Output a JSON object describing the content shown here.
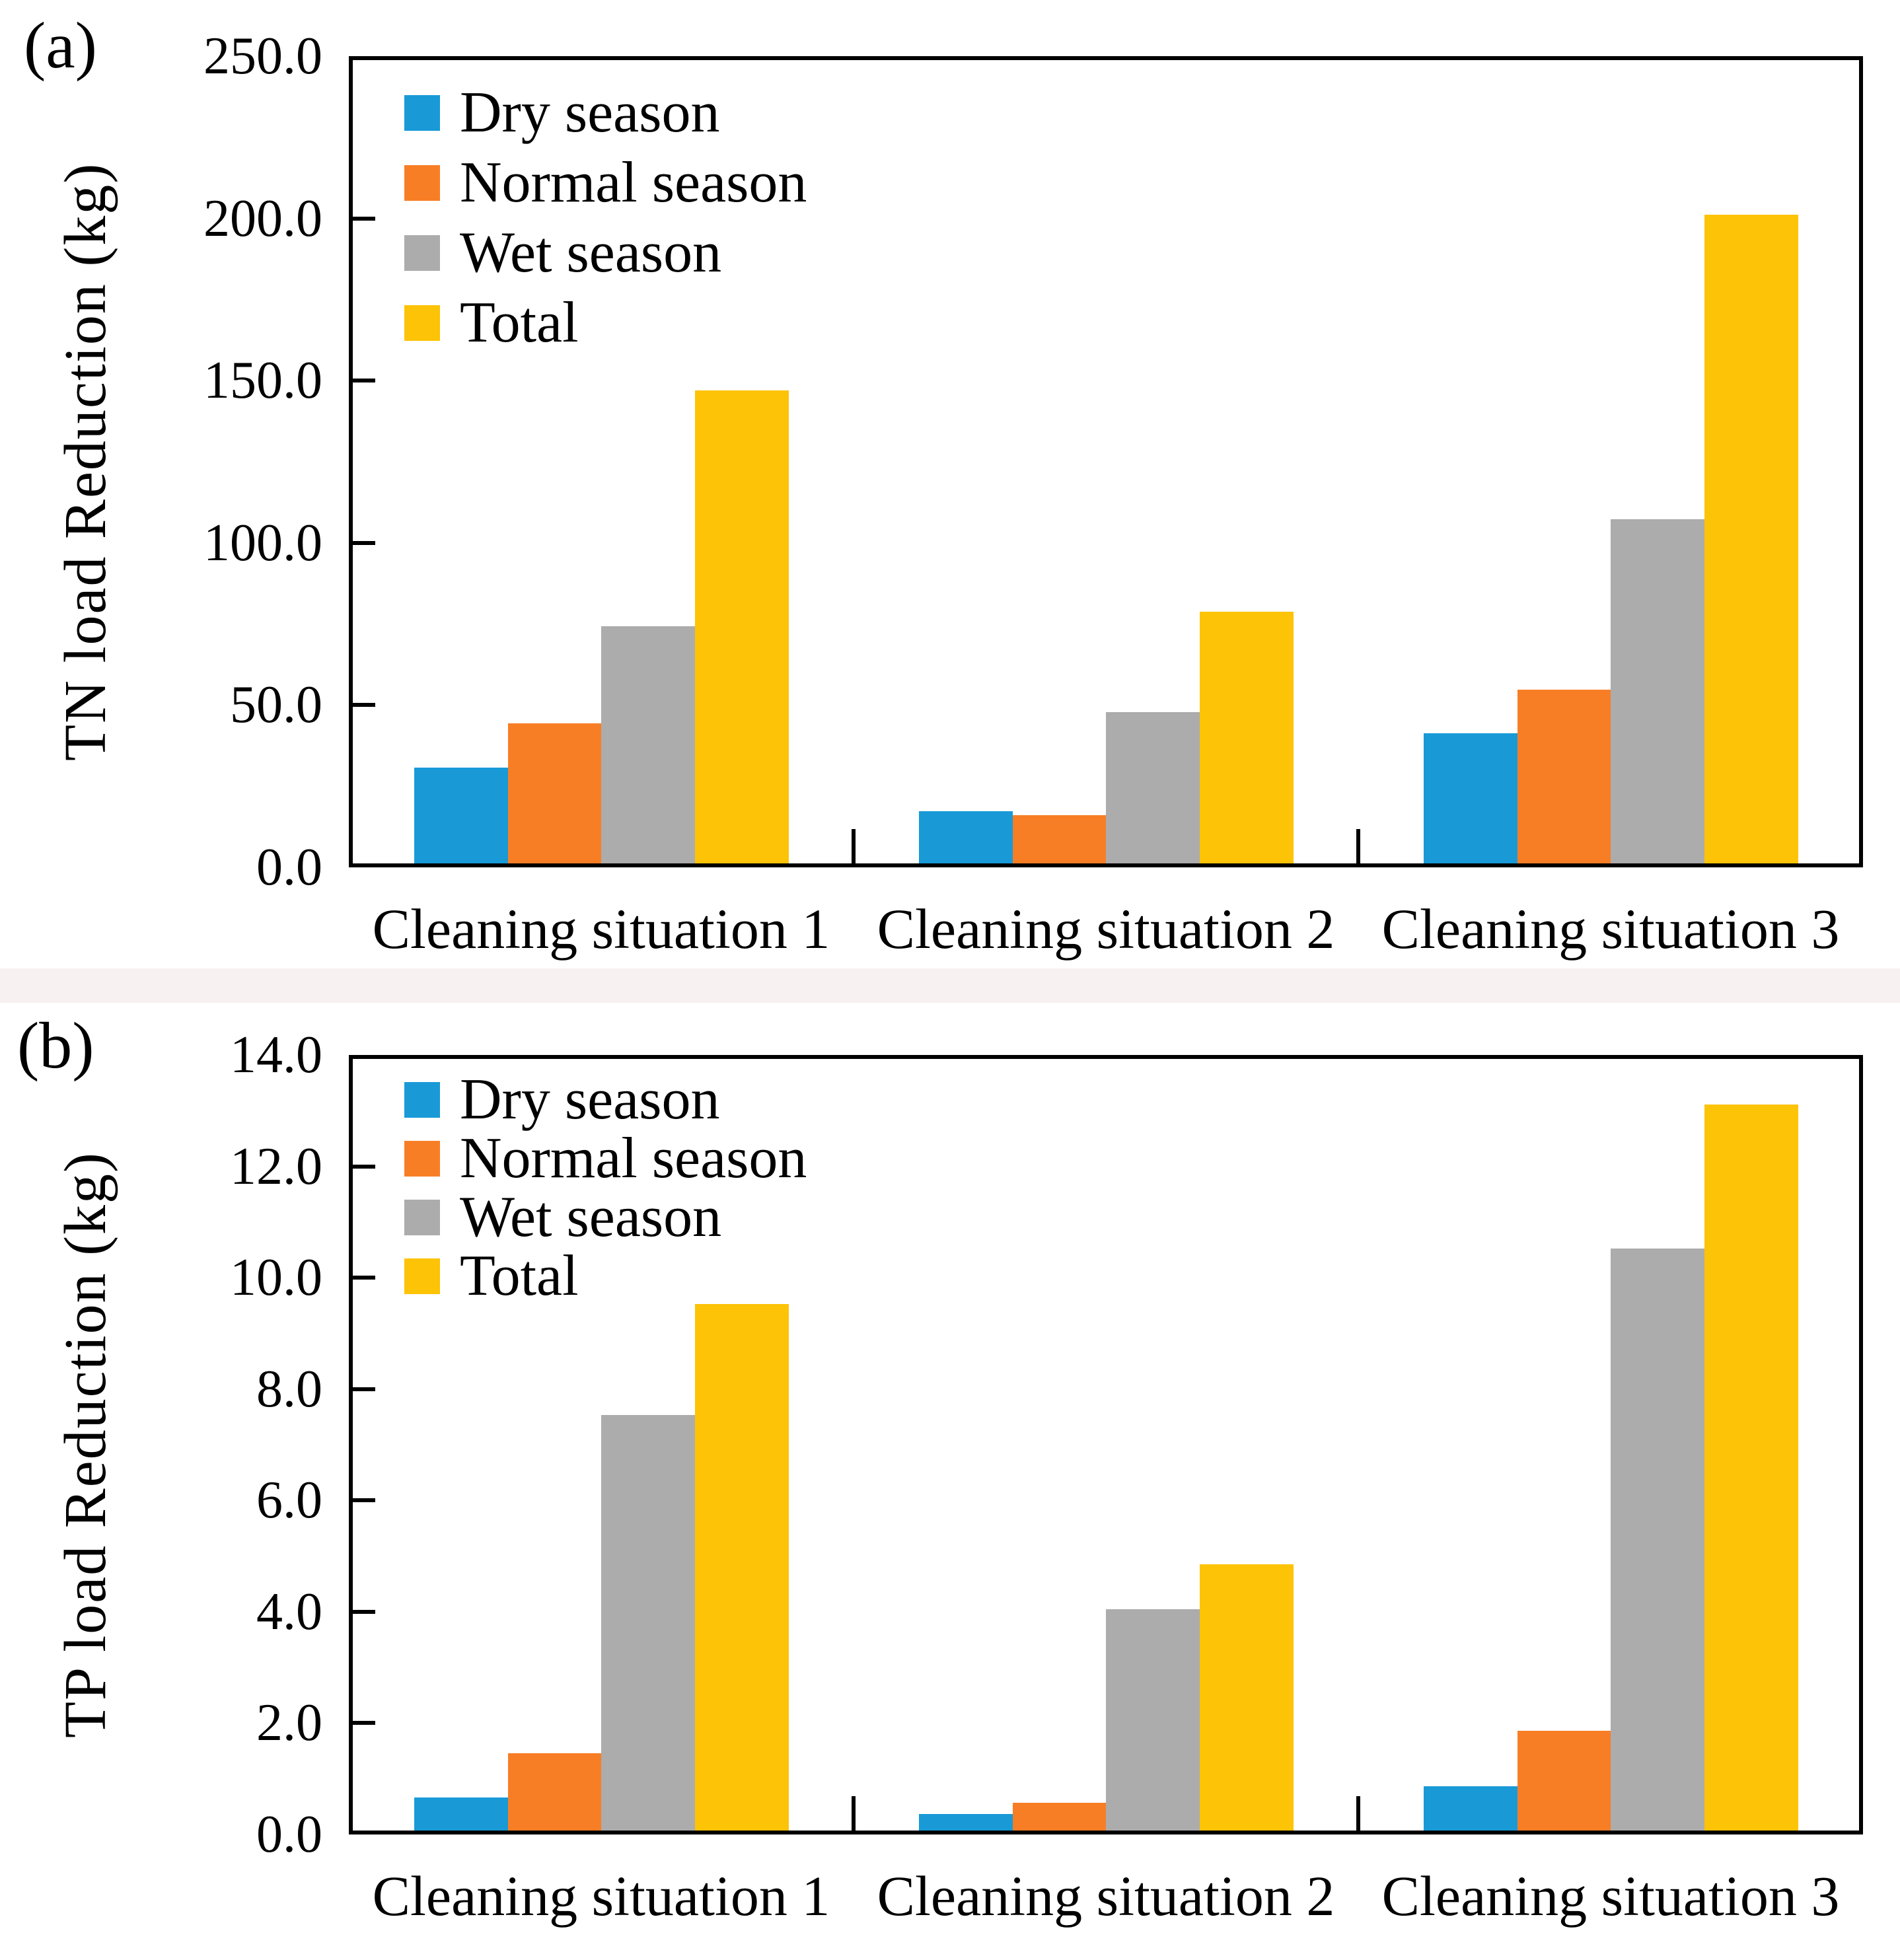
{
  "figure": {
    "background": "#ffffff",
    "tint_band_color": "#f7f1f1"
  },
  "chart_data": [
    {
      "id": "a",
      "type": "bar",
      "panel_label": "(a)",
      "title": "",
      "xlabel": "",
      "ylabel": "TN load Reduction (kg)",
      "ylim": [
        0,
        250
      ],
      "ytick_step": 50,
      "ytick_labels": [
        "250.0",
        "200.0",
        "150.0",
        "100.0",
        "50.0",
        "0.0"
      ],
      "grid": false,
      "legend_position": "top-left-inside",
      "categories": [
        "Cleaning situation 1",
        "Cleaning situation 2",
        "Cleaning situation 3"
      ],
      "series": [
        {
          "name": "Dry season",
          "color": "#199AD7",
          "values": [
            29.6,
            16.1,
            40.4
          ]
        },
        {
          "name": "Normal season",
          "color": "#F87E26",
          "values": [
            43.4,
            15.0,
            53.9
          ]
        },
        {
          "name": "Wet season",
          "color": "#ACACAC",
          "pattern": true,
          "values": [
            73.4,
            46.9,
            106.5
          ]
        },
        {
          "name": "Total",
          "color": "#FDC306",
          "values": [
            146.4,
            78.0,
            200.8
          ]
        }
      ]
    },
    {
      "id": "b",
      "type": "bar",
      "panel_label": "(b)",
      "title": "",
      "xlabel": "",
      "ylabel": "TP load Reduction (kg)",
      "ylim": [
        0,
        14
      ],
      "ytick_step": 2,
      "ytick_labels": [
        "14.0",
        "12.0",
        "10.0",
        "8.0",
        "6.0",
        "4.0",
        "2.0",
        "0.0"
      ],
      "grid": false,
      "legend_position": "top-left-inside",
      "categories": [
        "Cleaning situation 1",
        "Cleaning situation 2",
        "Cleaning situation 3"
      ],
      "series": [
        {
          "name": "Dry season",
          "color": "#199AD7",
          "values": [
            0.6,
            0.3,
            0.8
          ]
        },
        {
          "name": "Normal season",
          "color": "#F87E26",
          "values": [
            1.4,
            0.5,
            1.8
          ]
        },
        {
          "name": "Wet season",
          "color": "#ACACAC",
          "pattern": true,
          "values": [
            7.5,
            4.0,
            10.5
          ]
        },
        {
          "name": "Total",
          "color": "#FDC306",
          "values": [
            9.5,
            4.8,
            13.1
          ]
        }
      ]
    }
  ]
}
